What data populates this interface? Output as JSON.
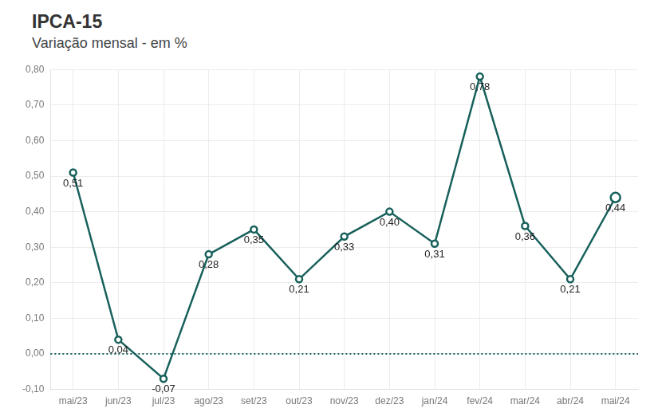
{
  "chart_data": {
    "type": "line",
    "title": "IPCA-15",
    "subtitle": "Variação mensal - em %",
    "categories": [
      "mai/23",
      "jun/23",
      "jul/23",
      "ago/23",
      "set/23",
      "out/23",
      "nov/23",
      "dez/23",
      "jan/24",
      "fev/24",
      "mar/24",
      "abr/24",
      "mai/24"
    ],
    "values": [
      0.51,
      0.04,
      -0.07,
      0.28,
      0.35,
      0.21,
      0.33,
      0.4,
      0.31,
      0.78,
      0.36,
      0.21,
      0.44
    ],
    "value_labels": [
      "0,51",
      "0,04",
      "-0,07",
      "0,28",
      "0,35",
      "0,21",
      "0,33",
      "0,40",
      "0,31",
      "0,78",
      "0,36",
      "0,21",
      "0,44"
    ],
    "color": "#17605b",
    "marker": "circle",
    "ylim": [
      -0.1,
      0.8
    ],
    "yticks": [
      {
        "value": -0.1,
        "label": "-0,10"
      },
      {
        "value": 0,
        "label": "0,00"
      },
      {
        "value": 0.1,
        "label": "0,10"
      },
      {
        "value": 0.2,
        "label": "0,20"
      },
      {
        "value": 0.3,
        "label": "0,30"
      },
      {
        "value": 0.4,
        "label": "0,40"
      },
      {
        "value": 0.5,
        "label": "0,50"
      },
      {
        "value": 0.6,
        "label": "0,60"
      },
      {
        "value": 0.7,
        "label": "0,70"
      },
      {
        "value": 0.8,
        "label": "0,80"
      }
    ],
    "grid": true,
    "data_labels": true
  }
}
